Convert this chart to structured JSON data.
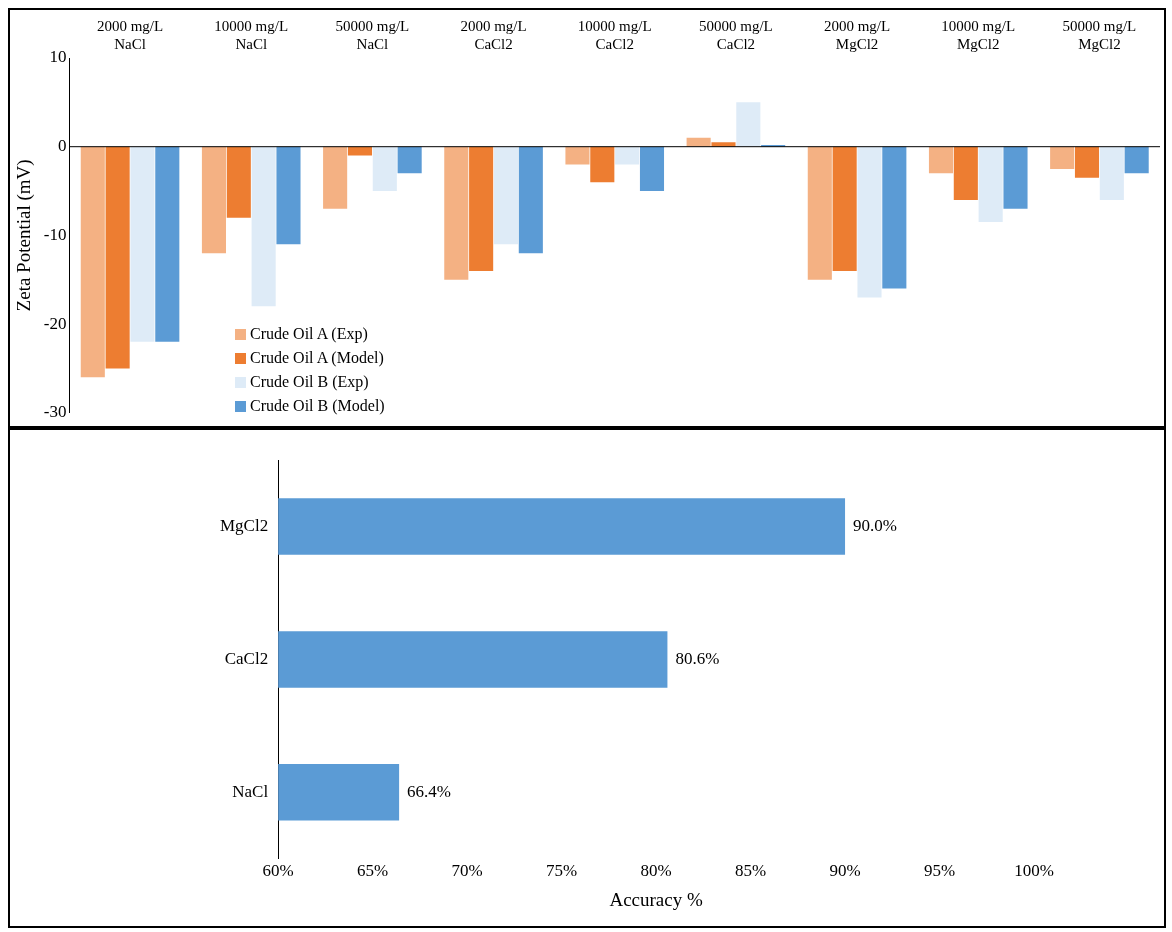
{
  "chart_data": [
    {
      "type": "bar",
      "ylabel": "Zeta Potential (mV)",
      "categories": [
        "2000 mg/L NaCl",
        "10000 mg/L NaCl",
        "50000 mg/L NaCl",
        "2000 mg/L CaCl2",
        "10000 mg/L CaCl2",
        "50000 mg/L CaCl2",
        "2000 mg/L MgCl2",
        "10000 mg/L MgCl2",
        "50000 mg/L MgCl2"
      ],
      "series": [
        {
          "name": "Crude Oil A (Exp)",
          "color": "#f4b183",
          "values": [
            -26,
            -12,
            -7,
            -15,
            -2,
            1,
            -15,
            -3,
            -2.5
          ]
        },
        {
          "name": "Crude Oil A (Model)",
          "color": "#ed7d31",
          "values": [
            -25,
            -8,
            -1,
            -14,
            -4,
            0.5,
            -14,
            -6,
            -3.5
          ]
        },
        {
          "name": "Crude Oil B (Exp)",
          "color": "#deebf7",
          "values": [
            -22,
            -18,
            -5,
            -11,
            -2,
            5,
            -17,
            -8.5,
            -6
          ]
        },
        {
          "name": "Crude Oil B (Model)",
          "color": "#5b9bd5",
          "values": [
            -22,
            -11,
            -3,
            -12,
            -5,
            0.2,
            -16,
            -7,
            -3
          ]
        }
      ],
      "ylim": [
        -30,
        10
      ],
      "yticks": [
        -30,
        -20,
        -10,
        0,
        10
      ],
      "grid": false,
      "legend": "bottom left",
      "ref_lines": [
        {
          "axis": "y",
          "value": 0,
          "color": "#000000"
        }
      ]
    },
    {
      "type": "bar",
      "orientation": "horizontal",
      "xlabel": "Accuracy %",
      "categories": [
        "MgCl2",
        "CaCl2",
        "NaCl"
      ],
      "values": [
        90.0,
        80.6,
        66.4
      ],
      "color": "#5b9bd5",
      "value_labels": [
        "90.0%",
        "80.6%",
        "66.4%"
      ],
      "xlim": [
        60,
        100
      ],
      "xticks": [
        {
          "value": 60,
          "label": "60%"
        },
        {
          "value": 65,
          "label": "65%"
        },
        {
          "value": 70,
          "label": "70%"
        },
        {
          "value": 75,
          "label": "75%"
        },
        {
          "value": 80,
          "label": "80%"
        },
        {
          "value": 85,
          "label": "85%"
        },
        {
          "value": 90,
          "label": "90%"
        },
        {
          "value": 95,
          "label": "95%"
        },
        {
          "value": 100,
          "label": "100%"
        }
      ],
      "grid": false
    }
  ]
}
